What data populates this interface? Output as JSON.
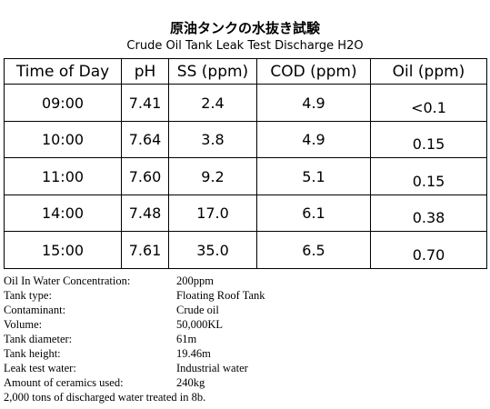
{
  "title_jp": "原油タンクの水抜き試験",
  "title_en": "Crude Oil Tank Leak Test Discharge H2O",
  "table": {
    "headers": [
      "Time of Day",
      "pH",
      "SS (ppm)",
      "COD (ppm)",
      "Oil (ppm)"
    ],
    "rows": [
      [
        "09:00",
        "7.41",
        "2.4",
        "4.9",
        "<0.1"
      ],
      [
        "10:00",
        "7.64",
        "3.8",
        "4.9",
        "0.15"
      ],
      [
        "11:00",
        "7.60",
        "9.2",
        "5.1",
        "0.15"
      ],
      [
        "14:00",
        "7.48",
        "17.0",
        "6.1",
        "0.38"
      ],
      [
        "15:00",
        "7.61",
        "35.0",
        "6.5",
        "0.70"
      ]
    ]
  },
  "notes": [
    {
      "label": "Oil In Water Concentration:",
      "value": "200ppm"
    },
    {
      "label": "Tank type:",
      "value": "Floating Roof Tank"
    },
    {
      "label": "Contaminant:",
      "value": "Crude oil"
    },
    {
      "label": "Volume:",
      "value": "50,000KL"
    },
    {
      "label": "Tank diameter:",
      "value": "61m"
    },
    {
      "label": "Tank height:",
      "value": "19.46m"
    },
    {
      "label": "Leak test water:",
      "value": "Industrial water"
    },
    {
      "label": "Amount of ceramics used:",
      "value": "240kg"
    }
  ],
  "footnote": "2,000 tons of discharged water treated in 8b."
}
